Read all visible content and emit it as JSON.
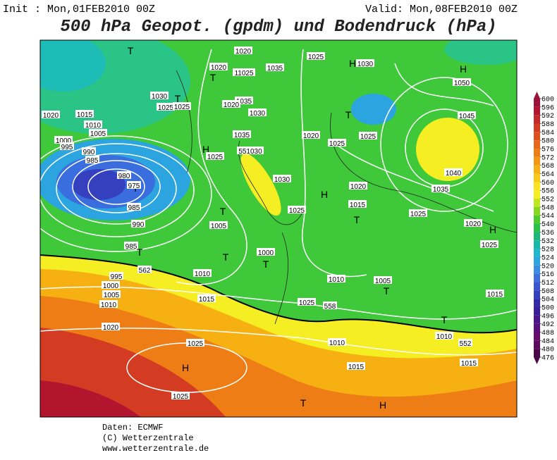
{
  "header": {
    "init": "Init : Mon,01FEB2010 00Z",
    "valid": "Valid: Mon,08FEB2010 00Z",
    "title": "500 hPa Geopot. (gpdm) und Bodendruck (hPa)"
  },
  "colorbar": {
    "ticks": [
      600,
      596,
      592,
      588,
      584,
      580,
      576,
      572,
      568,
      564,
      560,
      556,
      552,
      548,
      544,
      540,
      536,
      532,
      528,
      524,
      520,
      516,
      512,
      508,
      504,
      500,
      496,
      492,
      488,
      484,
      480,
      476
    ],
    "colors": [
      "#9c1238",
      "#b3152f",
      "#c42828",
      "#d33c22",
      "#df501c",
      "#e7661a",
      "#ee7d16",
      "#f39613",
      "#f7b012",
      "#fac915",
      "#fce21f",
      "#f4ee22",
      "#bfe61e",
      "#86d81e",
      "#4ecb2a",
      "#2abf46",
      "#1cb878",
      "#1ab8a6",
      "#20b6cc",
      "#2ca4e0",
      "#3a8ae6",
      "#3e6ede",
      "#3a54d2",
      "#3440be",
      "#302aa8",
      "#3a1e98",
      "#4a168a",
      "#5a107c",
      "#680c6c",
      "#5c0a5c",
      "#4a0848"
    ]
  },
  "map_labels": [
    "T",
    "1020",
    "1025",
    "H",
    "1030",
    "H",
    "1050",
    "1035",
    "11025",
    "1020",
    "T",
    "1030",
    "T",
    "1025",
    "1025",
    "1035",
    "1020",
    "1030",
    "T",
    "1045",
    "1020",
    "1015",
    "1010",
    "1005",
    "1035",
    "1025",
    "1020",
    "1000",
    "995",
    "990",
    "985",
    "H",
    "551030",
    "1025",
    "1025",
    "T",
    "980",
    "975",
    "985",
    "1040",
    "1035",
    "1030",
    "1020",
    "H",
    "1015",
    "1025",
    "1025",
    "T",
    "1005",
    "T",
    "1020",
    "H",
    "990",
    "985",
    "T",
    "1025",
    "T",
    "1000",
    "T",
    "562",
    "1010",
    "995",
    "1000",
    "1005",
    "1010",
    "1010",
    "1005",
    "T",
    "1015",
    "1015",
    "1025",
    "558",
    "1020",
    "T",
    "1010",
    "1025",
    "1010",
    "552",
    "H",
    "1015",
    "1015",
    "1025",
    "T",
    "H"
  ],
  "footer": [
    "Daten: ECMWF",
    "(C) Wetterzentrale",
    "www.wetterzentrale.de"
  ]
}
